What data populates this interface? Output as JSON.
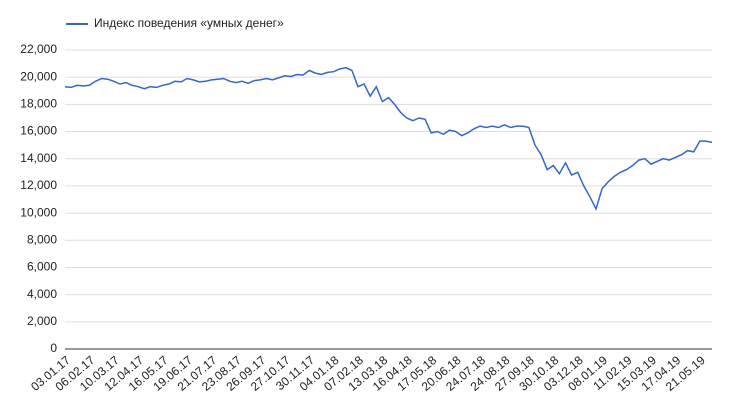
{
  "chart_data": {
    "type": "line",
    "categories": [
      "03.01.17",
      null,
      null,
      null,
      "06.02.17",
      null,
      null,
      null,
      "10.03.17",
      null,
      null,
      null,
      "12.04.17",
      null,
      null,
      null,
      "16.05.17",
      null,
      null,
      null,
      "19.06.17",
      null,
      null,
      null,
      "21.07.17",
      null,
      null,
      null,
      "23.08.17",
      null,
      null,
      null,
      "26.09.17",
      null,
      null,
      null,
      "27.10.17",
      null,
      null,
      null,
      "30.11.17",
      null,
      null,
      null,
      "04.01.18",
      null,
      null,
      null,
      "07.02.18",
      null,
      null,
      null,
      "13.03.18",
      null,
      null,
      null,
      "16.04.18",
      null,
      null,
      null,
      "17.05.18",
      null,
      null,
      null,
      "20.06.18",
      null,
      null,
      null,
      "24.07.18",
      null,
      null,
      null,
      "24.08.18",
      null,
      null,
      null,
      "27.09.18",
      null,
      null,
      null,
      "30.10.18",
      null,
      null,
      null,
      "03.12.18",
      null,
      null,
      null,
      "08.01.19",
      null,
      null,
      null,
      "11.02.19",
      null,
      null,
      null,
      "15.03.19",
      null,
      null,
      null,
      "17.04.19",
      null,
      null,
      null,
      "21.05.19",
      null,
      null
    ],
    "series": [
      {
        "name": "Индекс поведения «умных денег»",
        "color": "#3366cc",
        "values": [
          19300,
          19250,
          19400,
          19350,
          19400,
          19700,
          19900,
          19850,
          19700,
          19500,
          19600,
          19400,
          19300,
          19150,
          19300,
          19250,
          19400,
          19500,
          19700,
          19650,
          19900,
          19800,
          19650,
          19700,
          19800,
          19850,
          19900,
          19700,
          19600,
          19700,
          19550,
          19750,
          19800,
          19900,
          19800,
          19950,
          20100,
          20050,
          20200,
          20150,
          20500,
          20300,
          20200,
          20350,
          20400,
          20600,
          20700,
          20500,
          19300,
          19500,
          18600,
          19300,
          18200,
          18500,
          18000,
          17400,
          17000,
          16800,
          17000,
          16900,
          15900,
          16000,
          15800,
          16100,
          16000,
          15700,
          15900,
          16200,
          16400,
          16300,
          16400,
          16300,
          16500,
          16300,
          16400,
          16400,
          16300,
          15000,
          14300,
          13200,
          13500,
          12900,
          13700,
          12800,
          13000,
          12000,
          11200,
          10300,
          11800,
          12300,
          12700,
          13000,
          13200,
          13500,
          13900,
          14000,
          13600,
          13800,
          14000,
          13900,
          14100,
          14300,
          14600,
          14500,
          15300,
          15300,
          15200
        ]
      }
    ],
    "ylim": [
      0,
      22000
    ],
    "yticks": [
      0,
      {
        "value": 2000,
        "label": "2,000"
      },
      {
        "value": 4000,
        "label": "4,000"
      },
      {
        "value": 6000,
        "label": "6,000"
      },
      {
        "value": 8000,
        "label": "8,000"
      },
      {
        "value": 10000,
        "label": "10,000"
      },
      {
        "value": 12000,
        "label": "12,000"
      },
      {
        "value": 14000,
        "label": "14,000"
      },
      {
        "value": 16000,
        "label": "16,000"
      },
      {
        "value": 18000,
        "label": "18,000"
      },
      {
        "value": 20000,
        "label": "20,000"
      },
      {
        "value": 22000,
        "label": "22,000"
      }
    ],
    "grid": true,
    "legend": "top-left"
  }
}
